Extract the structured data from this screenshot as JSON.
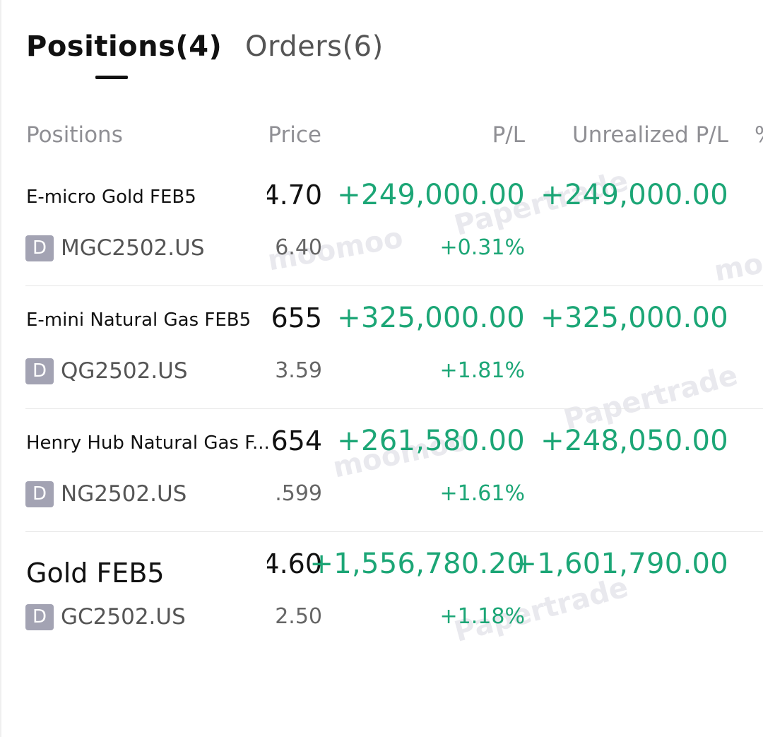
{
  "tabs": {
    "positions_label": "Positions(4)",
    "orders_label": "Orders(6)"
  },
  "columns": {
    "positions": "Positions",
    "price": "Price",
    "pl": "P/L",
    "unrealized_pl": "Unrealized P/L",
    "pct_partial": "%"
  },
  "positions": [
    {
      "name": "E-micro Gold FEB5",
      "type_badge": "D",
      "symbol": "MGC2502.US",
      "price": "4.70",
      "price_sub": "6.40",
      "pl": "+249,000.00",
      "pl_pct": "+0.31%",
      "unrealized_pl": "+249,000.00"
    },
    {
      "name": "E-mini Natural Gas FEB5",
      "type_badge": "D",
      "symbol": "QG2502.US",
      "price": "655",
      "price_sub": "3.59",
      "pl": "+325,000.00",
      "pl_pct": "+1.81%",
      "unrealized_pl": "+325,000.00"
    },
    {
      "name": "Henry Hub Natural Gas F...",
      "type_badge": "D",
      "symbol": "NG2502.US",
      "price": "654",
      "price_sub": ".599",
      "pl": "+261,580.00",
      "pl_pct": "+1.61%",
      "unrealized_pl": "+248,050.00"
    },
    {
      "name": "Gold FEB5",
      "type_badge": "D",
      "symbol": "GC2502.US",
      "price": "4.60",
      "price_sub": "2.50",
      "pl": "+1,556,780.20",
      "pl_pct": "+1.18%",
      "unrealized_pl": "+1,601,790.00"
    }
  ],
  "watermarks": {
    "papertrade": "Papertrade",
    "moomoo": "moomoo"
  },
  "colors": {
    "gain": "#1ca676",
    "header": "#8f8f94",
    "badge": "#a3a3b3"
  }
}
